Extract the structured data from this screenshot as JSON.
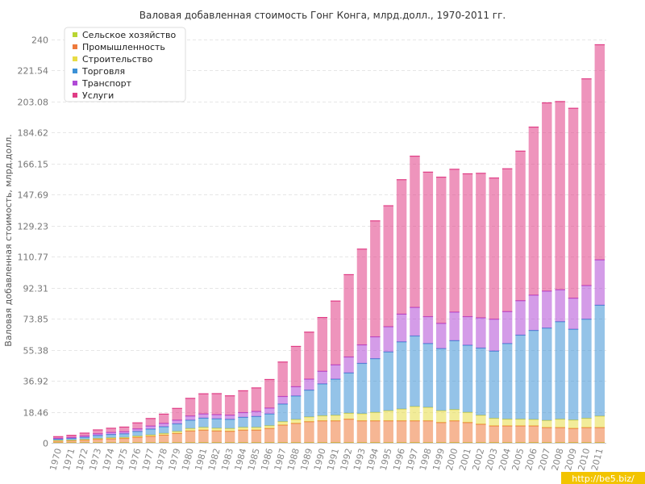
{
  "chart_data": {
    "type": "bar",
    "stacked": true,
    "title": "Валовая добавленная стоимость Гонг Конга, млрд.долл., 1970-2011 гг.",
    "ylabel": "Валовая добавленная стоимость, млрд.долл.",
    "xlabel": "",
    "ylim": [
      0,
      240
    ],
    "yticks": [
      "0",
      "18.46",
      "36.92",
      "55.38",
      "73.85",
      "92.31",
      "110.77",
      "129.23",
      "147.69",
      "166.15",
      "184.62",
      "203.08",
      "221.54",
      "240"
    ],
    "grid": true,
    "legend_position": "top-left",
    "categories": [
      "1970",
      "1971",
      "1972",
      "1973",
      "1974",
      "1975",
      "1976",
      "1977",
      "1978",
      "1979",
      "1980",
      "1981",
      "1982",
      "1983",
      "1984",
      "1985",
      "1986",
      "1987",
      "1988",
      "1989",
      "1990",
      "1991",
      "1992",
      "1993",
      "1994",
      "1995",
      "1996",
      "1997",
      "1998",
      "1999",
      "2000",
      "2001",
      "2002",
      "2003",
      "2004",
      "2005",
      "2006",
      "2007",
      "2008",
      "2009",
      "2010",
      "2011"
    ],
    "series": [
      {
        "name": "Сельское хозяйство",
        "color": "#b9d532",
        "values": [
          0.1,
          0.1,
          0.1,
          0.1,
          0.1,
          0.1,
          0.1,
          0.1,
          0.1,
          0.1,
          0.1,
          0.1,
          0.1,
          0.1,
          0.1,
          0.1,
          0.1,
          0.1,
          0.1,
          0.1,
          0.1,
          0.1,
          0.1,
          0.1,
          0.1,
          0.1,
          0.1,
          0.1,
          0.1,
          0.1,
          0.1,
          0.1,
          0.1,
          0.1,
          0.1,
          0.1,
          0.1,
          0.1,
          0.1,
          0.1,
          0.1,
          0.1
        ]
      },
      {
        "name": "Промышленность",
        "color": "#ee7a3c",
        "values": [
          1,
          1.2,
          1.5,
          2,
          2.3,
          2.5,
          3.2,
          3.8,
          4.5,
          5.5,
          7,
          7.5,
          7,
          6.8,
          7.5,
          7.5,
          8.5,
          10.5,
          11.5,
          12.5,
          13,
          13,
          14,
          13,
          13,
          13,
          13,
          13,
          13,
          12,
          13,
          12,
          11,
          10,
          10,
          10,
          10,
          9,
          9,
          8.5,
          9,
          9
        ]
      },
      {
        "name": "Строительство",
        "color": "#e8dc45",
        "values": [
          0.3,
          0.3,
          0.4,
          0.5,
          0.6,
          0.6,
          0.7,
          0.8,
          1,
          1.2,
          1.4,
          1.6,
          1.6,
          1.6,
          1.6,
          1.6,
          1.6,
          2,
          2.3,
          2.8,
          3,
          3.3,
          3.5,
          4.2,
          5,
          6,
          7,
          8.5,
          8,
          7,
          6.7,
          6,
          5.3,
          4.5,
          4,
          4,
          3.8,
          4.2,
          5,
          5,
          5.5,
          6.8
        ]
      },
      {
        "name": "Торговля",
        "color": "#3c91d6",
        "values": [
          0.8,
          1,
          1.3,
          1.8,
          2,
          2.2,
          2.8,
          3.5,
          4,
          4.5,
          5,
          5.5,
          5.6,
          5.5,
          6,
          6.5,
          7,
          10.5,
          14,
          16,
          19,
          21.5,
          24,
          30,
          32,
          35,
          40,
          42,
          38,
          37,
          41,
          40,
          40,
          40,
          45,
          50,
          53,
          55,
          58,
          54,
          59,
          66
        ]
      },
      {
        "name": "Транспорт",
        "color": "#b04ad6",
        "values": [
          0.5,
          0.6,
          0.8,
          1,
          1.2,
          1.2,
          1.5,
          1.8,
          2,
          2.2,
          2.5,
          2.5,
          2.5,
          2.5,
          2.8,
          3,
          3.5,
          4.5,
          5.5,
          6.5,
          7.5,
          8.5,
          9.5,
          11,
          13,
          15,
          16.5,
          17,
          16,
          15,
          17,
          17,
          18,
          19,
          19,
          20.5,
          21,
          22,
          19,
          18.5,
          20,
          27
        ]
      },
      {
        "name": "Услуги",
        "color": "#e03c85",
        "values": [
          1,
          1.3,
          1.7,
          2.3,
          2.5,
          2.8,
          3.6,
          4.5,
          5.5,
          7,
          10.5,
          12,
          12.5,
          11.5,
          13,
          14,
          17,
          20.5,
          24,
          28,
          32,
          38,
          49,
          57,
          69,
          72,
          80,
          90,
          86,
          87,
          85,
          85,
          86,
          84,
          85,
          89,
          100,
          112,
          112,
          113,
          123,
          128
        ]
      }
    ]
  },
  "watermark": "http://be5.biz/"
}
